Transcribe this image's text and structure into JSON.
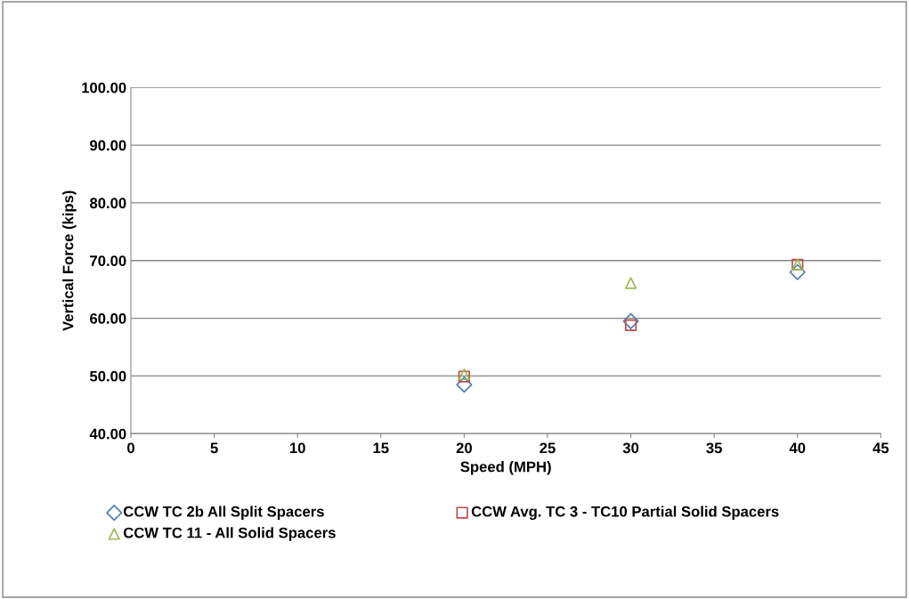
{
  "chart_data": {
    "type": "scatter",
    "xlabel": "Speed (MPH)",
    "ylabel": "Vertical Force (kips)",
    "x": [
      20,
      30,
      40
    ],
    "series": [
      {
        "name": "CCW TC 2b All Split Spacers",
        "color": "#4a7ebb",
        "marker": "diamond",
        "values": [
          48.5,
          59.5,
          68.0
        ]
      },
      {
        "name": "CCW Avg. TC 3 - TC10 Partial Solid Spacers",
        "color": "#be4b48",
        "marker": "square",
        "values": [
          49.9,
          58.8,
          69.3
        ]
      },
      {
        "name": "CCW TC 11 - All Solid Spacers",
        "color": "#98b954",
        "marker": "triangle",
        "values": [
          50.3,
          66.1,
          69.3
        ]
      }
    ],
    "xlim": [
      0,
      45
    ],
    "xticks": [
      0,
      5,
      10,
      15,
      20,
      25,
      30,
      35,
      40,
      45
    ],
    "ylim": [
      40,
      100
    ],
    "yticks": [
      {
        "value": 40,
        "label": "40.00"
      },
      {
        "value": 50,
        "label": "50.00"
      },
      {
        "value": 60,
        "label": "60.00"
      },
      {
        "value": 70,
        "label": "70.00"
      },
      {
        "value": 80,
        "label": "80.00"
      },
      {
        "value": 90,
        "label": "90.00"
      },
      {
        "value": 100,
        "label": "100.00"
      }
    ],
    "grid": "y",
    "legend": "bottom"
  }
}
